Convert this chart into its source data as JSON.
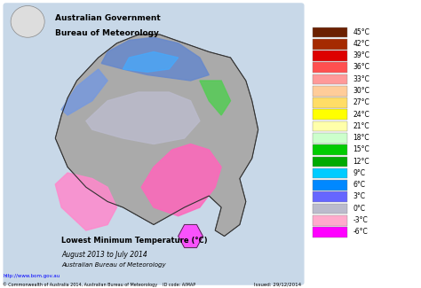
{
  "title_line1": "Lowest Minimum Temperature (°C)",
  "title_line2": "August 2013 to July 2014",
  "title_line3": "Australian Bureau of Meteorology",
  "header_line1": "Australian Government",
  "header_line2": "Bureau of Meteorology",
  "colorbar_labels": [
    "45°C",
    "42°C",
    "39°C",
    "36°C",
    "33°C",
    "30°C",
    "27°C",
    "24°C",
    "21°C",
    "18°C",
    "15°C",
    "12°C",
    "9°C",
    "6°C",
    "3°C",
    "0°C",
    "-3°C",
    "-6°C"
  ],
  "colorbar_colors": [
    "#6B2000",
    "#A52A00",
    "#DD0000",
    "#FF5050",
    "#FF9999",
    "#FFCC99",
    "#FFDD66",
    "#FFFF00",
    "#FFFFAA",
    "#CCFFCC",
    "#00CC00",
    "#00AA00",
    "#00CCFF",
    "#0088FF",
    "#6666FF",
    "#BBBBCC",
    "#FFAACC",
    "#FF00FF"
  ],
  "background_color": "#FFFFFF",
  "map_background": "#AAAACC",
  "issued_text": "Issued: 29/12/2014",
  "url_text": "http://www.bom.gov.au",
  "copyright_text": "© Commonwealth of Australia 2014, Australian Bureau of Meteorology    ID code: AIMAP",
  "fig_width": 4.74,
  "fig_height": 3.25,
  "dpi": 100
}
